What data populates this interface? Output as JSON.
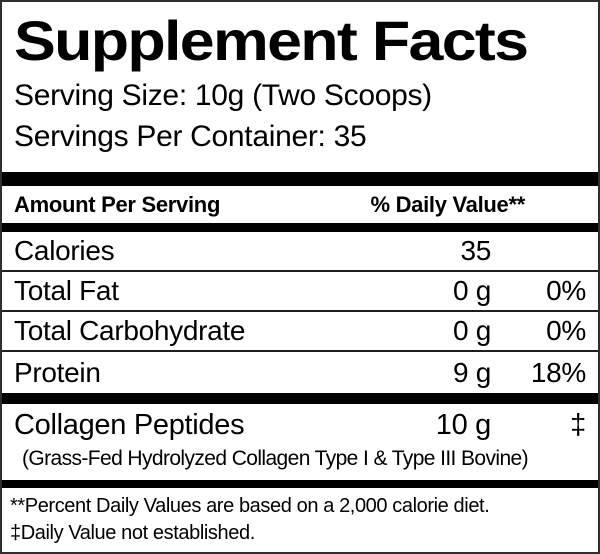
{
  "colors": {
    "text": "#000000",
    "background": "#ffffff",
    "rule": "#000000",
    "border": "#2e2e2e"
  },
  "label": {
    "title": "Supplement Facts",
    "serving_size": "Serving Size: 10g (Two Scoops)",
    "servings_per_container": "Servings Per Container: 35",
    "columns": {
      "amount_header": "Amount Per Serving",
      "dv_header": "% Daily Value**"
    },
    "rows": [
      {
        "name": "Calories",
        "amount": "35",
        "dv": ""
      },
      {
        "name": "Total Fat",
        "amount": "0 g",
        "dv": "0%"
      },
      {
        "name": "Total Carbohydrate",
        "amount": "0 g",
        "dv": "0%"
      },
      {
        "name": "Protein",
        "amount": "9 g",
        "dv": "18%"
      }
    ],
    "ingredient": {
      "name": "Collagen Peptides",
      "amount": "10 g",
      "dv": "‡",
      "detail": "(Grass-Fed Hydrolyzed Collagen Type I & Type III Bovine)"
    },
    "footnotes": [
      "**Percent Daily Values are based on a 2,000 calorie diet.",
      "‡Daily Value not established."
    ]
  }
}
